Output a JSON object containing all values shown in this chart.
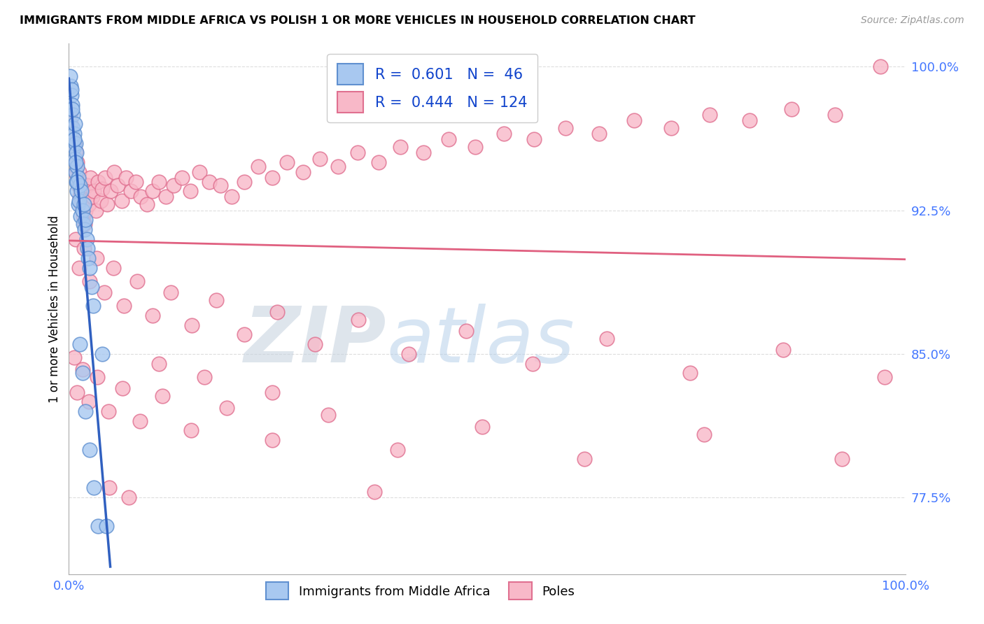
{
  "title": "IMMIGRANTS FROM MIDDLE AFRICA VS POLISH 1 OR MORE VEHICLES IN HOUSEHOLD CORRELATION CHART",
  "source": "Source: ZipAtlas.com",
  "ylabel": "1 or more Vehicles in Household",
  "xmin": 0.0,
  "xmax": 1.0,
  "ymin": 0.735,
  "ymax": 1.012,
  "yticks": [
    0.775,
    0.85,
    0.925,
    1.0
  ],
  "ytick_labels": [
    "77.5%",
    "85.0%",
    "92.5%",
    "100.0%"
  ],
  "xtick_labels": [
    "0.0%",
    "100.0%"
  ],
  "legend_blue_r": "0.601",
  "legend_blue_n": "46",
  "legend_pink_r": "0.444",
  "legend_pink_n": "124",
  "legend_label_blue": "Immigrants from Middle Africa",
  "legend_label_pink": "Poles",
  "blue_face_color": "#A8C8F0",
  "blue_edge_color": "#6090D0",
  "pink_face_color": "#F8B8C8",
  "pink_edge_color": "#E07090",
  "trendline_blue_color": "#3060C0",
  "trendline_pink_color": "#E06080",
  "watermark_zip_color": "#C8D8E8",
  "watermark_atlas_color": "#B8D0E8",
  "grid_color": "#DDDDDD",
  "tick_color": "#4477FF",
  "blue_x": [
    0.002,
    0.003,
    0.004,
    0.005,
    0.005,
    0.006,
    0.006,
    0.007,
    0.007,
    0.008,
    0.008,
    0.009,
    0.009,
    0.01,
    0.01,
    0.011,
    0.011,
    0.012,
    0.013,
    0.014,
    0.015,
    0.016,
    0.017,
    0.018,
    0.019,
    0.02,
    0.021,
    0.022,
    0.023,
    0.025,
    0.027,
    0.029,
    0.001,
    0.003,
    0.004,
    0.006,
    0.008,
    0.01,
    0.013,
    0.016,
    0.02,
    0.025,
    0.03,
    0.035,
    0.04,
    0.045
  ],
  "blue_y": [
    0.99,
    0.985,
    0.98,
    0.975,
    0.968,
    0.965,
    0.958,
    0.97,
    0.952,
    0.96,
    0.945,
    0.955,
    0.94,
    0.948,
    0.935,
    0.942,
    0.928,
    0.93,
    0.938,
    0.922,
    0.935,
    0.925,
    0.918,
    0.928,
    0.915,
    0.92,
    0.91,
    0.905,
    0.9,
    0.895,
    0.885,
    0.875,
    0.995,
    0.988,
    0.978,
    0.962,
    0.95,
    0.94,
    0.855,
    0.84,
    0.82,
    0.8,
    0.78,
    0.76,
    0.85,
    0.76
  ],
  "pink_x": [
    0.001,
    0.002,
    0.003,
    0.004,
    0.005,
    0.005,
    0.006,
    0.007,
    0.007,
    0.008,
    0.009,
    0.01,
    0.011,
    0.012,
    0.013,
    0.014,
    0.015,
    0.016,
    0.017,
    0.018,
    0.019,
    0.02,
    0.022,
    0.024,
    0.026,
    0.028,
    0.03,
    0.032,
    0.035,
    0.038,
    0.04,
    0.043,
    0.046,
    0.05,
    0.054,
    0.058,
    0.063,
    0.068,
    0.074,
    0.08,
    0.086,
    0.093,
    0.1,
    0.108,
    0.116,
    0.125,
    0.135,
    0.145,
    0.156,
    0.168,
    0.181,
    0.195,
    0.21,
    0.226,
    0.243,
    0.261,
    0.28,
    0.3,
    0.322,
    0.345,
    0.37,
    0.396,
    0.424,
    0.454,
    0.486,
    0.52,
    0.556,
    0.594,
    0.634,
    0.676,
    0.72,
    0.766,
    0.814,
    0.864,
    0.916,
    0.97,
    0.008,
    0.012,
    0.018,
    0.025,
    0.033,
    0.042,
    0.053,
    0.066,
    0.082,
    0.1,
    0.122,
    0.147,
    0.176,
    0.21,
    0.249,
    0.294,
    0.346,
    0.406,
    0.475,
    0.554,
    0.643,
    0.743,
    0.854,
    0.975,
    0.006,
    0.01,
    0.016,
    0.024,
    0.034,
    0.047,
    0.064,
    0.085,
    0.112,
    0.146,
    0.189,
    0.243,
    0.31,
    0.393,
    0.494,
    0.616,
    0.759,
    0.924,
    0.048,
    0.072,
    0.108,
    0.162,
    0.243,
    0.365
  ],
  "pink_y": [
    0.975,
    0.97,
    0.965,
    0.962,
    0.958,
    0.955,
    0.96,
    0.952,
    0.948,
    0.956,
    0.944,
    0.95,
    0.938,
    0.945,
    0.932,
    0.94,
    0.928,
    0.935,
    0.922,
    0.93,
    0.918,
    0.925,
    0.938,
    0.928,
    0.942,
    0.932,
    0.935,
    0.925,
    0.94,
    0.93,
    0.936,
    0.942,
    0.928,
    0.935,
    0.945,
    0.938,
    0.93,
    0.942,
    0.935,
    0.94,
    0.932,
    0.928,
    0.935,
    0.94,
    0.932,
    0.938,
    0.942,
    0.935,
    0.945,
    0.94,
    0.938,
    0.932,
    0.94,
    0.948,
    0.942,
    0.95,
    0.945,
    0.952,
    0.948,
    0.955,
    0.95,
    0.958,
    0.955,
    0.962,
    0.958,
    0.965,
    0.962,
    0.968,
    0.965,
    0.972,
    0.968,
    0.975,
    0.972,
    0.978,
    0.975,
    1.0,
    0.91,
    0.895,
    0.905,
    0.888,
    0.9,
    0.882,
    0.895,
    0.875,
    0.888,
    0.87,
    0.882,
    0.865,
    0.878,
    0.86,
    0.872,
    0.855,
    0.868,
    0.85,
    0.862,
    0.845,
    0.858,
    0.84,
    0.852,
    0.838,
    0.848,
    0.83,
    0.842,
    0.825,
    0.838,
    0.82,
    0.832,
    0.815,
    0.828,
    0.81,
    0.822,
    0.805,
    0.818,
    0.8,
    0.812,
    0.795,
    0.808,
    0.795,
    0.78,
    0.775,
    0.845,
    0.838,
    0.83,
    0.778
  ]
}
